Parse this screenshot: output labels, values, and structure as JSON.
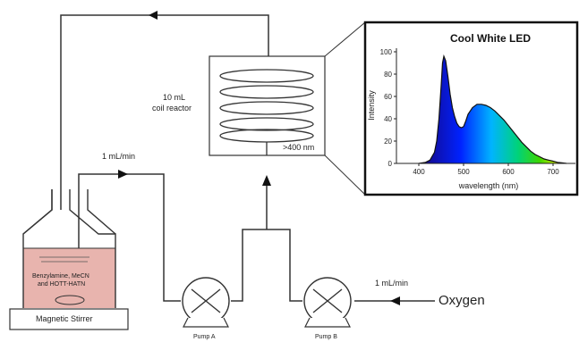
{
  "reactor": {
    "volume_label": "10 mL",
    "type_label": "coil reactor",
    "wavelength_label": ">400 nm"
  },
  "flows": {
    "pump_a_rate": "1 mL/min",
    "pump_b_rate": "1 mL/min"
  },
  "flask": {
    "contents_line1": "Benzylamine, MeCN",
    "contents_line2": "and HOTT-HATN"
  },
  "stirrer": {
    "label": "Magnetic Stirrer"
  },
  "pumps": {
    "a_label": "Pump A",
    "b_label": "Pump B"
  },
  "gas": {
    "label": "Oxygen"
  },
  "colors": {
    "line": "#333333",
    "flask_fill": "#e8b4ae",
    "box_border": "#111111"
  },
  "chart_data": {
    "type": "area",
    "title": "Cool White LED",
    "xlabel": "wavelength (nm)",
    "ylabel": "Intensity",
    "xlim": [
      350,
      750
    ],
    "ylim": [
      0,
      100
    ],
    "xticks": [
      400,
      500,
      600,
      700
    ],
    "yticks": [
      0,
      20,
      40,
      60,
      80,
      100
    ],
    "grid": false,
    "fill": "visible-spectrum gradient",
    "x": [
      400,
      415,
      425,
      435,
      440,
      445,
      450,
      453,
      456,
      460,
      465,
      470,
      475,
      480,
      485,
      490,
      495,
      500,
      505,
      510,
      520,
      530,
      540,
      550,
      560,
      570,
      580,
      590,
      600,
      610,
      620,
      630,
      640,
      650,
      660,
      670,
      680,
      690,
      700,
      710,
      720,
      730
    ],
    "y": [
      0,
      1,
      3,
      10,
      20,
      40,
      70,
      90,
      96,
      92,
      78,
      62,
      50,
      42,
      36,
      33,
      32,
      33,
      38,
      44,
      50,
      53,
      53,
      52,
      50,
      47,
      43,
      39,
      34,
      29,
      24,
      19,
      15,
      11,
      8,
      6,
      4,
      3,
      2,
      1,
      0.5,
      0
    ]
  }
}
